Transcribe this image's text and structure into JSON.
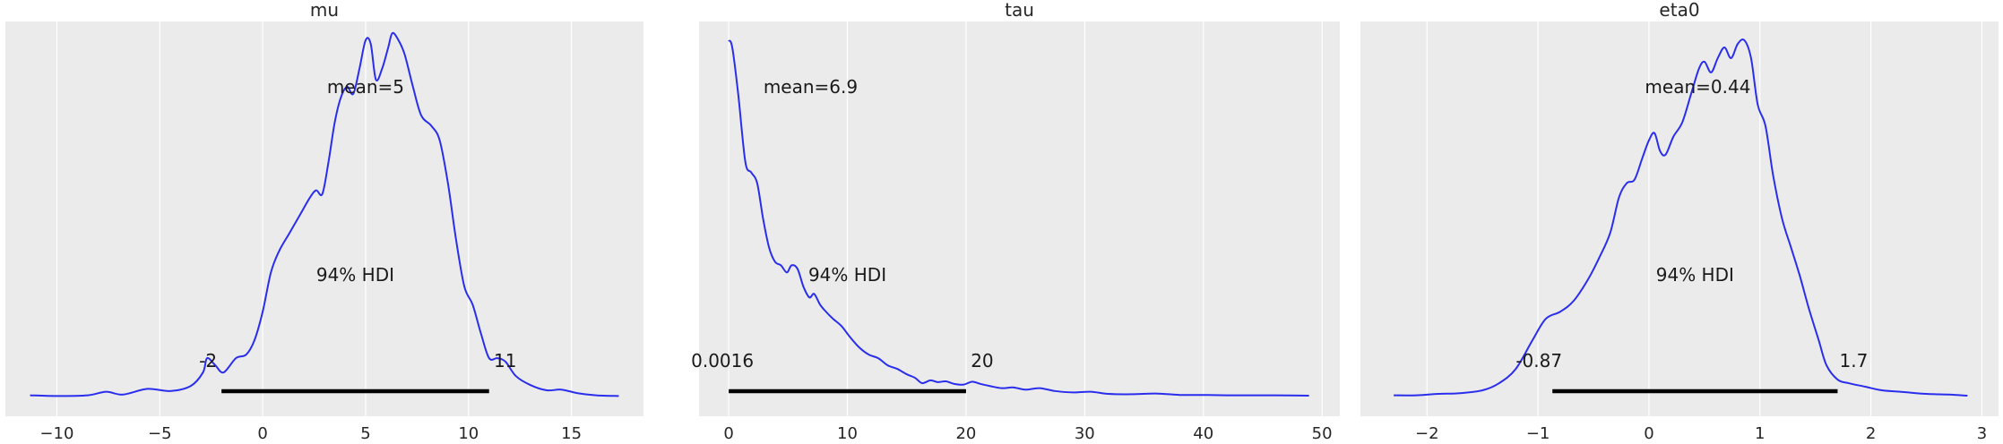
{
  "colors": {
    "background": "#ebebeb",
    "grid": "#ffffff",
    "curve": "#2a2eec",
    "hdi": "#000000",
    "text": "#262626"
  },
  "chart_data": [
    {
      "type": "density",
      "title": "mu",
      "xlim": [
        -12.5,
        18.5
      ],
      "xticks": [
        -10,
        -5,
        0,
        5,
        10,
        15
      ],
      "xtick_labels": [
        "−10",
        "−5",
        "0",
        "5",
        "10",
        "15"
      ],
      "mean_label": "mean=5",
      "hdi_label": "94% HDI",
      "hdi": [
        -2,
        11
      ],
      "hdi_low_label": "-2",
      "hdi_high_label": "11",
      "density_points": [
        [
          -11.3,
          0.006
        ],
        [
          -10,
          0.004
        ],
        [
          -8.5,
          0.006
        ],
        [
          -7.6,
          0.016
        ],
        [
          -6.8,
          0.008
        ],
        [
          -5.6,
          0.024
        ],
        [
          -4.5,
          0.018
        ],
        [
          -3.5,
          0.032
        ],
        [
          -2.9,
          0.07
        ],
        [
          -2.7,
          0.11
        ],
        [
          -2.3,
          0.09
        ],
        [
          -1.9,
          0.07
        ],
        [
          -1.3,
          0.11
        ],
        [
          -0.8,
          0.12
        ],
        [
          -0.4,
          0.16
        ],
        [
          0,
          0.24
        ],
        [
          0.4,
          0.35
        ],
        [
          0.8,
          0.41
        ],
        [
          1.3,
          0.46
        ],
        [
          1.8,
          0.51
        ],
        [
          2.3,
          0.56
        ],
        [
          2.6,
          0.58
        ],
        [
          2.9,
          0.57
        ],
        [
          3.2,
          0.66
        ],
        [
          3.5,
          0.77
        ],
        [
          3.8,
          0.84
        ],
        [
          4.1,
          0.87
        ],
        [
          4.4,
          0.85
        ],
        [
          4.7,
          0.92
        ],
        [
          5.0,
          1.0
        ],
        [
          5.25,
          0.99
        ],
        [
          5.5,
          0.89
        ],
        [
          5.8,
          0.92
        ],
        [
          6.1,
          0.98
        ],
        [
          6.3,
          1.02
        ],
        [
          6.6,
          1.0
        ],
        [
          6.9,
          0.96
        ],
        [
          7.3,
          0.87
        ],
        [
          7.7,
          0.79
        ],
        [
          8.2,
          0.76
        ],
        [
          8.6,
          0.72
        ],
        [
          9.0,
          0.6
        ],
        [
          9.4,
          0.44
        ],
        [
          9.8,
          0.31
        ],
        [
          10.2,
          0.26
        ],
        [
          10.6,
          0.18
        ],
        [
          11.0,
          0.11
        ],
        [
          11.4,
          0.11
        ],
        [
          11.8,
          0.1
        ],
        [
          12.3,
          0.06
        ],
        [
          13,
          0.035
        ],
        [
          13.8,
          0.02
        ],
        [
          14.5,
          0.022
        ],
        [
          15.3,
          0.012
        ],
        [
          16.2,
          0.006
        ],
        [
          17.3,
          0.004
        ]
      ]
    },
    {
      "type": "density",
      "title": "tau",
      "xlim": [
        -2.5,
        51.5
      ],
      "xticks": [
        0,
        10,
        20,
        30,
        40,
        50
      ],
      "xtick_labels": [
        "0",
        "10",
        "20",
        "30",
        "40",
        "50"
      ],
      "mean_label": "mean=6.9",
      "hdi_label": "94% HDI",
      "hdi": [
        0.0016,
        20
      ],
      "hdi_low_label": "0.0016",
      "hdi_high_label": "20",
      "density_points": [
        [
          0,
          1.0
        ],
        [
          0.3,
          0.98
        ],
        [
          0.8,
          0.85
        ],
        [
          1.4,
          0.66
        ],
        [
          1.9,
          0.63
        ],
        [
          2.4,
          0.6
        ],
        [
          2.9,
          0.5
        ],
        [
          3.4,
          0.42
        ],
        [
          3.9,
          0.38
        ],
        [
          4.4,
          0.37
        ],
        [
          4.9,
          0.35
        ],
        [
          5.3,
          0.37
        ],
        [
          5.8,
          0.36
        ],
        [
          6.3,
          0.31
        ],
        [
          6.8,
          0.28
        ],
        [
          7.2,
          0.29
        ],
        [
          7.7,
          0.26
        ],
        [
          8.2,
          0.24
        ],
        [
          8.8,
          0.22
        ],
        [
          9.5,
          0.2
        ],
        [
          10.2,
          0.17
        ],
        [
          11,
          0.14
        ],
        [
          11.8,
          0.12
        ],
        [
          12.6,
          0.11
        ],
        [
          13.4,
          0.09
        ],
        [
          14.2,
          0.08
        ],
        [
          15,
          0.065
        ],
        [
          15.7,
          0.055
        ],
        [
          16.3,
          0.04
        ],
        [
          17,
          0.048
        ],
        [
          17.6,
          0.043
        ],
        [
          18.3,
          0.045
        ],
        [
          19,
          0.038
        ],
        [
          19.8,
          0.036
        ],
        [
          20.5,
          0.044
        ],
        [
          21.2,
          0.038
        ],
        [
          22,
          0.032
        ],
        [
          23,
          0.026
        ],
        [
          24,
          0.028
        ],
        [
          25,
          0.022
        ],
        [
          26.2,
          0.026
        ],
        [
          27.5,
          0.018
        ],
        [
          29,
          0.014
        ],
        [
          30.5,
          0.016
        ],
        [
          32,
          0.01
        ],
        [
          34,
          0.009
        ],
        [
          36,
          0.011
        ],
        [
          38,
          0.007
        ],
        [
          40,
          0.007
        ],
        [
          42,
          0.006
        ],
        [
          44,
          0.006
        ],
        [
          46,
          0.006
        ],
        [
          48.9,
          0.005
        ]
      ]
    },
    {
      "type": "density",
      "title": "eta0",
      "xlim": [
        -2.6,
        3.15
      ],
      "xticks": [
        -2,
        -1,
        0,
        1,
        2,
        3
      ],
      "xtick_labels": [
        "−2",
        "−1",
        "0",
        "1",
        "2",
        "3"
      ],
      "mean_label": "mean=0.44",
      "hdi_label": "94% HDI",
      "hdi": [
        -0.87,
        1.7
      ],
      "hdi_low_label": "-0.87",
      "hdi_high_label": "1.7",
      "density_points": [
        [
          -2.3,
          0.006
        ],
        [
          -2.1,
          0.006
        ],
        [
          -1.9,
          0.01
        ],
        [
          -1.7,
          0.012
        ],
        [
          -1.5,
          0.02
        ],
        [
          -1.35,
          0.04
        ],
        [
          -1.2,
          0.08
        ],
        [
          -1.05,
          0.16
        ],
        [
          -0.93,
          0.22
        ],
        [
          -0.8,
          0.24
        ],
        [
          -0.68,
          0.27
        ],
        [
          -0.55,
          0.33
        ],
        [
          -0.45,
          0.39
        ],
        [
          -0.35,
          0.46
        ],
        [
          -0.27,
          0.56
        ],
        [
          -0.2,
          0.6
        ],
        [
          -0.13,
          0.61
        ],
        [
          -0.06,
          0.67
        ],
        [
          0.0,
          0.72
        ],
        [
          0.05,
          0.74
        ],
        [
          0.1,
          0.69
        ],
        [
          0.15,
          0.68
        ],
        [
          0.22,
          0.73
        ],
        [
          0.3,
          0.77
        ],
        [
          0.38,
          0.85
        ],
        [
          0.45,
          0.92
        ],
        [
          0.5,
          0.94
        ],
        [
          0.56,
          0.91
        ],
        [
          0.62,
          0.95
        ],
        [
          0.68,
          0.98
        ],
        [
          0.74,
          0.95
        ],
        [
          0.8,
          0.99
        ],
        [
          0.86,
          1.0
        ],
        [
          0.92,
          0.95
        ],
        [
          0.98,
          0.82
        ],
        [
          1.05,
          0.76
        ],
        [
          1.12,
          0.62
        ],
        [
          1.2,
          0.5
        ],
        [
          1.28,
          0.42
        ],
        [
          1.36,
          0.34
        ],
        [
          1.44,
          0.25
        ],
        [
          1.53,
          0.16
        ],
        [
          1.6,
          0.09
        ],
        [
          1.7,
          0.05
        ],
        [
          1.8,
          0.04
        ],
        [
          1.95,
          0.03
        ],
        [
          2.1,
          0.02
        ],
        [
          2.3,
          0.015
        ],
        [
          2.5,
          0.01
        ],
        [
          2.7,
          0.008
        ],
        [
          2.87,
          0.005
        ]
      ]
    }
  ]
}
